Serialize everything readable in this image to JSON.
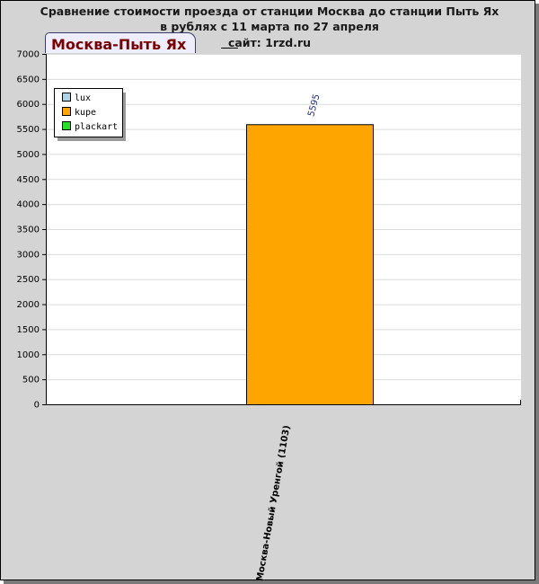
{
  "header": {
    "title_line1": "Сравнение стоимости проезда от станции Москва до станции Пыть Ях",
    "title_line2": "в рублях с 11 марта по 27 апреля",
    "title_line3": "сайт: 1rzd.ru",
    "tab_label": "Москва-Пыть Ях"
  },
  "colors": {
    "lux": "#b0d4e6",
    "kupe": "#ffa500",
    "plackart": "#22e022"
  },
  "chart_data": {
    "type": "bar",
    "categories": [
      "Москва-Новый Уренгой (1103)"
    ],
    "series": [
      {
        "name": "lux",
        "values": [
          null
        ]
      },
      {
        "name": "kupe",
        "values": [
          5595
        ]
      },
      {
        "name": "plackart",
        "values": [
          null
        ]
      }
    ],
    "data_labels": [
      "5595"
    ],
    "yticks": [
      0,
      500,
      1000,
      1500,
      2000,
      2500,
      3000,
      3500,
      4000,
      4500,
      5000,
      5500,
      6000,
      6500,
      7000
    ],
    "ylim": [
      0,
      7000
    ],
    "grid": true,
    "legend_position": "top-left"
  }
}
